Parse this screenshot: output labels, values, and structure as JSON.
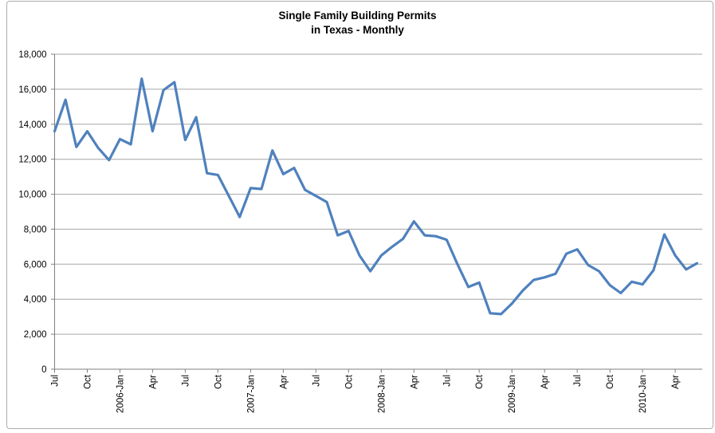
{
  "chart": {
    "title_line1": "Single Family Building Permits",
    "title_line2": "in Texas - Monthly",
    "line_color": "#4F81BD",
    "gridline_color": "#A6A6A6",
    "axis_color": "#7F7F7F",
    "label_color": "#000000",
    "frame_border_color": "#ADADAD",
    "background_color": "#FFFFFF"
  },
  "chart_data": {
    "type": "line",
    "title": "Single Family Building Permits in Texas - Monthly",
    "xlabel": "",
    "ylabel": "",
    "grid": true,
    "legend": "none",
    "ylim": [
      0,
      18000
    ],
    "y_tick_step": 2000,
    "y_tick_labels": [
      "0",
      "2,000",
      "4,000",
      "6,000",
      "8,000",
      "10,000",
      "12,000",
      "14,000",
      "16,000",
      "18,000"
    ],
    "x_tick_every": 3,
    "x_tick_labels": [
      "Jul",
      "Oct",
      "2006-Jan",
      "Apr",
      "Jul",
      "Oct",
      "2007-Jan",
      "Apr",
      "Jul",
      "Oct",
      "2008-Jan",
      "Apr",
      "Jul",
      "Oct",
      "2009-Jan",
      "Apr",
      "Jul",
      "Oct",
      "2010-Jan",
      "Apr"
    ],
    "x": [
      "2005-Jul",
      "2005-Aug",
      "2005-Sep",
      "2005-Oct",
      "2005-Nov",
      "2005-Dec",
      "2006-Jan",
      "2006-Feb",
      "2006-Mar",
      "2006-Apr",
      "2006-May",
      "2006-Jun",
      "2006-Jul",
      "2006-Aug",
      "2006-Sep",
      "2006-Oct",
      "2006-Nov",
      "2006-Dec",
      "2007-Jan",
      "2007-Feb",
      "2007-Mar",
      "2007-Apr",
      "2007-May",
      "2007-Jun",
      "2007-Jul",
      "2007-Aug",
      "2007-Sep",
      "2007-Oct",
      "2007-Nov",
      "2007-Dec",
      "2008-Jan",
      "2008-Feb",
      "2008-Mar",
      "2008-Apr",
      "2008-May",
      "2008-Jun",
      "2008-Jul",
      "2008-Aug",
      "2008-Sep",
      "2008-Oct",
      "2008-Nov",
      "2008-Dec",
      "2009-Jan",
      "2009-Feb",
      "2009-Mar",
      "2009-Apr",
      "2009-May",
      "2009-Jun",
      "2009-Jul",
      "2009-Aug",
      "2009-Sep",
      "2009-Oct",
      "2009-Nov",
      "2009-Dec",
      "2010-Jan",
      "2010-Feb",
      "2010-Mar",
      "2010-Apr",
      "2010-May",
      "2010-Jun"
    ],
    "values": [
      13600,
      15400,
      12700,
      13600,
      12650,
      11950,
      13150,
      12850,
      16600,
      13600,
      15950,
      16400,
      13100,
      14400,
      11200,
      11100,
      9900,
      8700,
      10350,
      10300,
      12500,
      11150,
      11500,
      10250,
      9900,
      9550,
      7650,
      7900,
      6500,
      5600,
      6500,
      7000,
      7450,
      8450,
      7650,
      7600,
      7400,
      6000,
      4700,
      4950,
      3200,
      3150,
      3750,
      4500,
      5100,
      5250,
      5450,
      6600,
      6850,
      5950,
      5600,
      4800,
      4350,
      5000,
      4850,
      5650,
      7700,
      6500,
      5700,
      6050
    ]
  }
}
